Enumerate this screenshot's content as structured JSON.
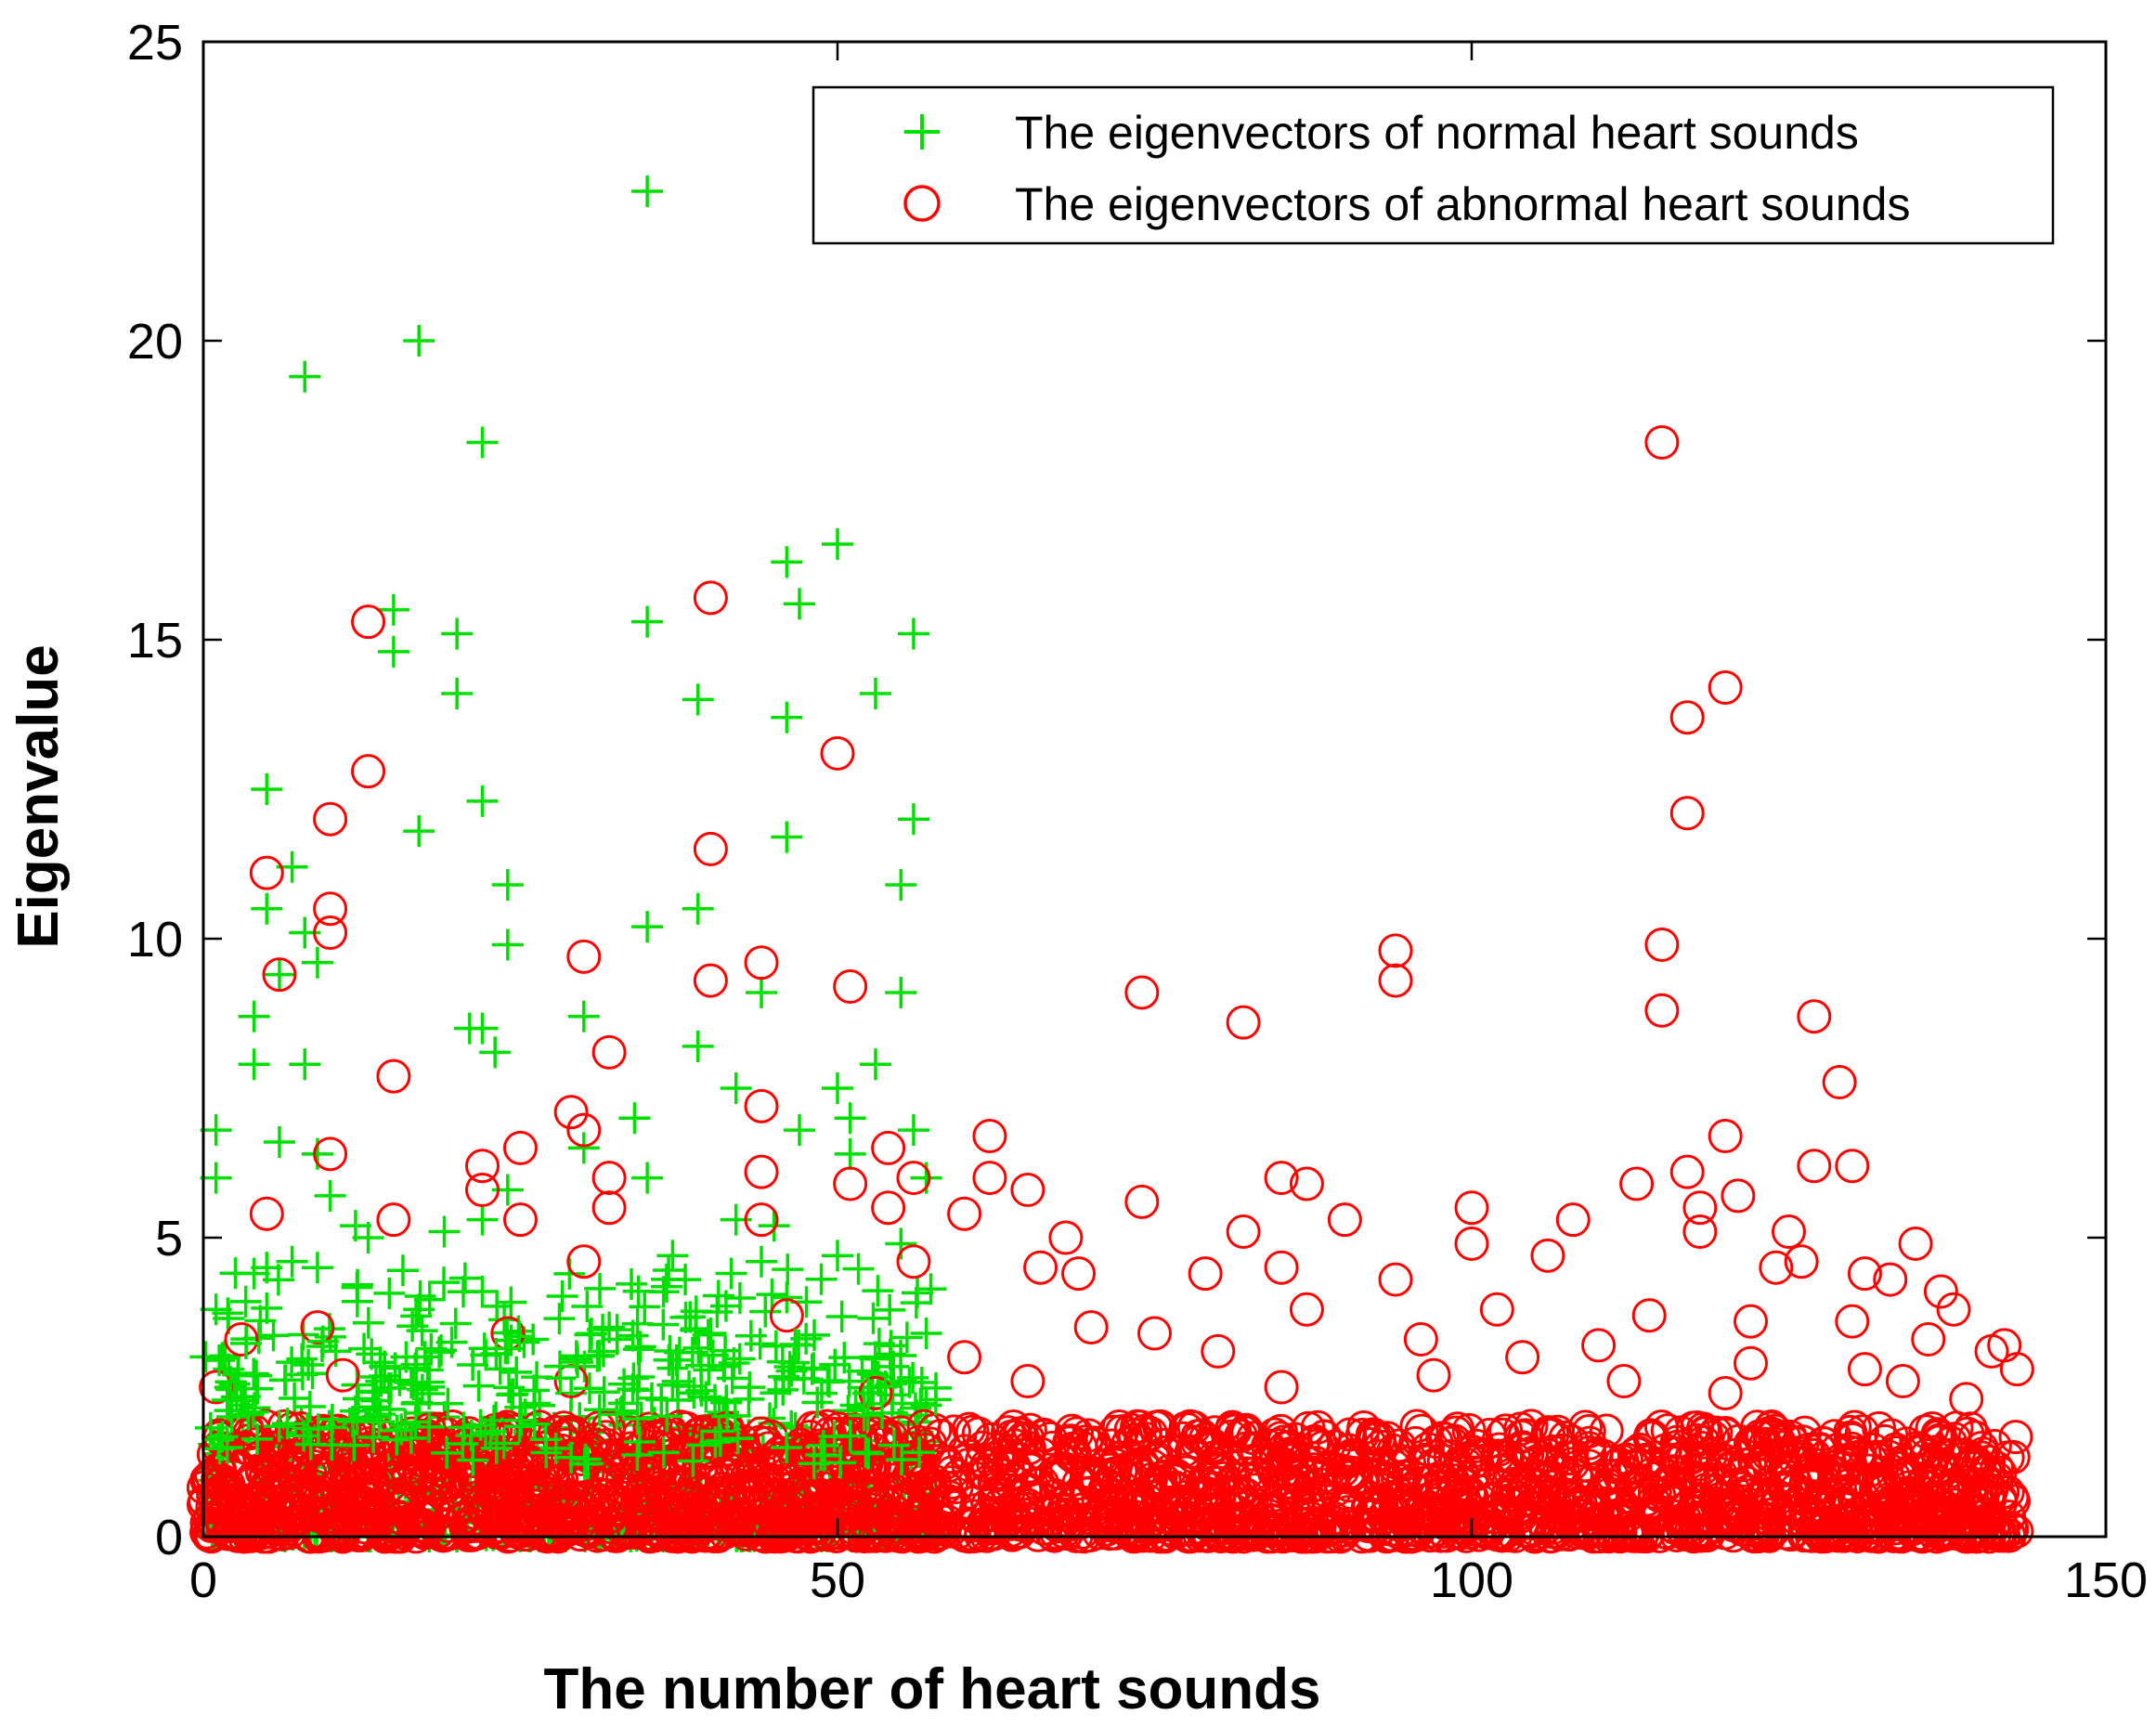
{
  "chart_data": {
    "type": "scatter",
    "title": "",
    "xlabel": "The number of heart sounds",
    "ylabel": "Eigenvalue",
    "xlim": [
      0,
      150
    ],
    "ylim": [
      0,
      25
    ],
    "xticks": [
      0,
      50,
      100,
      150
    ],
    "yticks": [
      0,
      5,
      10,
      15,
      20,
      25
    ],
    "grid": false,
    "legend_position": "top-right",
    "series": [
      {
        "name": "The eigenvectors of normal heart sounds",
        "marker": "plus",
        "color": "#00e000",
        "x_range": [
          0,
          58
        ],
        "highlight_points": [
          [
            35,
            22.5
          ],
          [
            17,
            20
          ],
          [
            8,
            19.4
          ],
          [
            22,
            18.3
          ],
          [
            50,
            16.6
          ],
          [
            46,
            16.3
          ],
          [
            47,
            15.6
          ],
          [
            15,
            15.5
          ],
          [
            35,
            15.3
          ],
          [
            56,
            15.1
          ],
          [
            20,
            15.1
          ],
          [
            15,
            14.8
          ],
          [
            20,
            14.1
          ],
          [
            39,
            14.0
          ],
          [
            53,
            14.1
          ],
          [
            46,
            13.7
          ],
          [
            5,
            12.5
          ],
          [
            22,
            12.3
          ],
          [
            56,
            12.0
          ],
          [
            17,
            11.8
          ],
          [
            46,
            11.7
          ],
          [
            7,
            11.2
          ],
          [
            24,
            10.9
          ],
          [
            55,
            10.9
          ],
          [
            5,
            10.5
          ],
          [
            39,
            10.5
          ],
          [
            35,
            10.2
          ],
          [
            8,
            10.1
          ],
          [
            24,
            9.9
          ],
          [
            9,
            9.6
          ],
          [
            6,
            9.4
          ],
          [
            55,
            9.1
          ],
          [
            44,
            9.1
          ],
          [
            4,
            8.7
          ],
          [
            30,
            8.7
          ],
          [
            22,
            8.5
          ],
          [
            21,
            8.5
          ],
          [
            39,
            8.2
          ],
          [
            23,
            8.1
          ],
          [
            4,
            7.9
          ],
          [
            8,
            7.9
          ],
          [
            53,
            7.9
          ],
          [
            42,
            7.5
          ],
          [
            50,
            7.5
          ],
          [
            34,
            7.0
          ],
          [
            51,
            7.0
          ],
          [
            1,
            6.8
          ],
          [
            47,
            6.8
          ],
          [
            56,
            6.8
          ],
          [
            6,
            6.6
          ],
          [
            30,
            6.5
          ],
          [
            9,
            6.4
          ],
          [
            51,
            6.4
          ],
          [
            1,
            6.0
          ],
          [
            24,
            5.8
          ],
          [
            35,
            6.0
          ],
          [
            57,
            6.0
          ],
          [
            10,
            5.7
          ],
          [
            12,
            5.2
          ],
          [
            22,
            5.3
          ],
          [
            42,
            5.3
          ],
          [
            19,
            5.1
          ],
          [
            45,
            5.2
          ],
          [
            13,
            5.0
          ],
          [
            55,
            4.9
          ],
          [
            5,
            4.5
          ],
          [
            4,
            4.4
          ],
          [
            7,
            4.6
          ],
          [
            9,
            4.5
          ],
          [
            37,
            4.7
          ],
          [
            44,
            4.6
          ],
          [
            50,
            4.7
          ],
          [
            1,
            3.8
          ],
          [
            17,
            3.8
          ],
          [
            22,
            4.1
          ],
          [
            38,
            4.3
          ],
          [
            46,
            4.0
          ],
          [
            57,
            3.4
          ],
          [
            26,
            3.3
          ],
          [
            32,
            3.5
          ],
          [
            40,
            3.4
          ],
          [
            2,
            2.8
          ],
          [
            14,
            2.6
          ],
          [
            29,
            2.4
          ],
          [
            48,
            2.8
          ],
          [
            55,
            2.6
          ],
          [
            57,
            2.2
          ],
          [
            3,
            2.2
          ],
          [
            12,
            2.1
          ],
          [
            19,
            2.0
          ],
          [
            33,
            2.1
          ],
          [
            43,
            2.3
          ],
          [
            52,
            2.0
          ]
        ]
      },
      {
        "name": "The eigenvectors of abnormal heart sounds",
        "marker": "circle",
        "color": "#ff0000",
        "x_range": [
          0,
          143
        ],
        "highlight_points": [
          [
            115,
            18.3
          ],
          [
            40,
            15.7
          ],
          [
            13,
            15.3
          ],
          [
            120,
            14.2
          ],
          [
            117,
            13.7
          ],
          [
            50,
            13.1
          ],
          [
            13,
            12.8
          ],
          [
            117,
            12.1
          ],
          [
            10,
            12.0
          ],
          [
            40,
            11.5
          ],
          [
            5,
            11.1
          ],
          [
            10,
            10.5
          ],
          [
            10,
            10.1
          ],
          [
            115,
            9.9
          ],
          [
            94,
            9.8
          ],
          [
            30,
            9.7
          ],
          [
            44,
            9.6
          ],
          [
            40,
            9.3
          ],
          [
            51,
            9.2
          ],
          [
            94,
            9.3
          ],
          [
            6,
            9.4
          ],
          [
            74,
            9.1
          ],
          [
            115,
            8.8
          ],
          [
            127,
            8.7
          ],
          [
            82,
            8.6
          ],
          [
            32,
            8.1
          ],
          [
            15,
            7.7
          ],
          [
            129,
            7.6
          ],
          [
            44,
            7.2
          ],
          [
            29,
            7.1
          ],
          [
            30,
            6.8
          ],
          [
            62,
            6.7
          ],
          [
            120,
            6.7
          ],
          [
            25,
            6.5
          ],
          [
            10,
            6.4
          ],
          [
            54,
            6.5
          ],
          [
            22,
            6.2
          ],
          [
            127,
            6.2
          ],
          [
            130,
            6.2
          ],
          [
            117,
            6.1
          ],
          [
            44,
            6.1
          ],
          [
            32,
            6.0
          ],
          [
            62,
            6.0
          ],
          [
            85,
            6.0
          ],
          [
            87,
            5.9
          ],
          [
            56,
            6.0
          ],
          [
            113,
            5.9
          ],
          [
            51,
            5.9
          ],
          [
            65,
            5.8
          ],
          [
            22,
            5.8
          ],
          [
            74,
            5.6
          ],
          [
            121,
            5.7
          ],
          [
            5,
            5.4
          ],
          [
            60,
            5.4
          ],
          [
            100,
            5.5
          ],
          [
            32,
            5.5
          ],
          [
            118,
            5.5
          ],
          [
            54,
            5.5
          ],
          [
            15,
            5.3
          ],
          [
            25,
            5.3
          ],
          [
            90,
            5.3
          ],
          [
            108,
            5.3
          ],
          [
            44,
            5.3
          ],
          [
            82,
            5.1
          ],
          [
            68,
            5.0
          ],
          [
            125,
            5.1
          ],
          [
            100,
            4.9
          ],
          [
            118,
            5.1
          ],
          [
            135,
            4.9
          ],
          [
            126,
            4.6
          ],
          [
            106,
            4.7
          ],
          [
            94,
            4.3
          ],
          [
            79,
            4.4
          ],
          [
            69,
            4.4
          ],
          [
            85,
            4.5
          ],
          [
            66,
            4.5
          ],
          [
            56,
            4.6
          ],
          [
            124,
            4.5
          ],
          [
            131,
            4.4
          ],
          [
            30,
            4.6
          ],
          [
            133,
            4.3
          ],
          [
            137,
            4.1
          ],
          [
            87,
            3.8
          ],
          [
            102,
            3.8
          ],
          [
            114,
            3.7
          ],
          [
            130,
            3.6
          ],
          [
            138,
            3.8
          ],
          [
            122,
            3.6
          ],
          [
            9,
            3.5
          ],
          [
            46,
            3.7
          ],
          [
            70,
            3.5
          ],
          [
            75,
            3.4
          ],
          [
            96,
            3.3
          ],
          [
            110,
            3.2
          ],
          [
            136,
            3.3
          ],
          [
            142,
            3.2
          ],
          [
            143,
            2.8
          ],
          [
            141,
            3.1
          ],
          [
            3,
            3.3
          ],
          [
            24,
            3.4
          ],
          [
            60,
            3.0
          ],
          [
            80,
            3.1
          ],
          [
            104,
            3.0
          ],
          [
            122,
            2.9
          ],
          [
            131,
            2.8
          ],
          [
            1,
            2.5
          ],
          [
            11,
            2.7
          ],
          [
            29,
            2.6
          ],
          [
            53,
            2.4
          ],
          [
            65,
            2.6
          ],
          [
            85,
            2.5
          ],
          [
            97,
            2.7
          ],
          [
            112,
            2.6
          ],
          [
            120,
            2.4
          ],
          [
            134,
            2.6
          ],
          [
            139,
            2.3
          ]
        ]
      }
    ]
  },
  "legend": {
    "normal_label": "The eigenvectors of normal heart sounds",
    "abnormal_label": "The eigenvectors of abnormal heart sounds"
  }
}
